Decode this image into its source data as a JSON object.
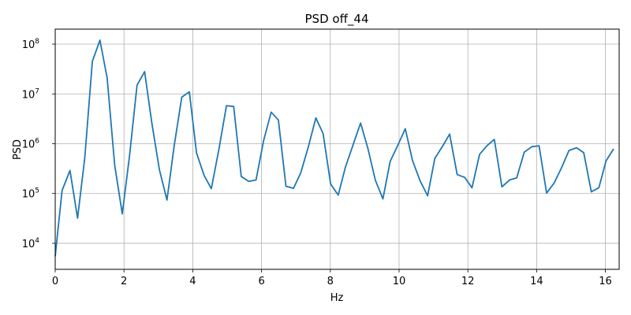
{
  "chart_data": {
    "type": "line",
    "title": "PSD off_44",
    "xlabel": "Hz",
    "ylabel": "PSD",
    "xlim": [
      0,
      16.4
    ],
    "ylim": [
      3000,
      200000000
    ],
    "yscale": "log",
    "grid": true,
    "color": "#1f77b4",
    "xticks": [
      0,
      2,
      4,
      6,
      8,
      10,
      12,
      14,
      16
    ],
    "xtick_labels": [
      "0",
      "2",
      "4",
      "6",
      "8",
      "10",
      "12",
      "14",
      "16"
    ],
    "yticks": [
      10000,
      100000,
      1000000,
      10000000,
      100000000
    ],
    "ytick_labels": [
      {
        "base": "10",
        "exp": "4"
      },
      {
        "base": "10",
        "exp": "5"
      },
      {
        "base": "10",
        "exp": "6"
      },
      {
        "base": "10",
        "exp": "7"
      },
      {
        "base": "10",
        "exp": "8"
      }
    ],
    "series": [
      {
        "x": [
          0,
          0.2,
          0.43,
          0.65,
          0.86,
          1.08,
          1.3,
          1.51,
          1.73,
          1.95,
          2.16,
          2.38,
          2.6,
          2.81,
          3.03,
          3.25,
          3.46,
          3.68,
          3.9,
          4.11,
          4.33,
          4.54,
          4.76,
          4.98,
          5.19,
          5.41,
          5.63,
          5.84,
          6.06,
          6.28,
          6.49,
          6.71,
          6.93,
          7.14,
          7.36,
          7.58,
          7.79,
          8.01,
          8.23,
          8.44,
          8.66,
          8.88,
          9.09,
          9.31,
          9.53,
          9.74,
          9.96,
          10.18,
          10.39,
          10.61,
          10.83,
          11.04,
          11.26,
          11.47,
          11.69,
          11.91,
          12.12,
          12.34,
          12.56,
          12.77,
          12.99,
          13.21,
          13.42,
          13.64,
          13.86,
          14.07,
          14.29,
          14.51,
          14.72,
          14.94,
          15.16,
          15.37,
          15.59,
          15.81,
          16.02,
          16.24
        ],
        "y": [
          5500,
          115000,
          290000,
          32000,
          520000,
          45000000,
          120000000,
          21000000,
          370000,
          39000,
          560000,
          15000000,
          28000000,
          2600000,
          300000,
          74000,
          910000,
          8600000,
          11000000,
          650000,
          230000,
          125000,
          770000,
          5800000,
          5600000,
          220000,
          175000,
          187000,
          1150000,
          4300000,
          3000000,
          140000,
          127000,
          260000,
          860000,
          3300000,
          1600000,
          155000,
          93000,
          340000,
          940000,
          2600000,
          820000,
          185000,
          78000,
          440000,
          920000,
          2000000,
          460000,
          180000,
          90000,
          510000,
          880000,
          1560000,
          240000,
          210000,
          130000,
          610000,
          920000,
          1220000,
          136000,
          186000,
          206000,
          675000,
          870000,
          910000,
          102000,
          163000,
          325000,
          730000,
          830000,
          660000,
          108000,
          131000,
          455000,
          790000
        ]
      }
    ]
  }
}
